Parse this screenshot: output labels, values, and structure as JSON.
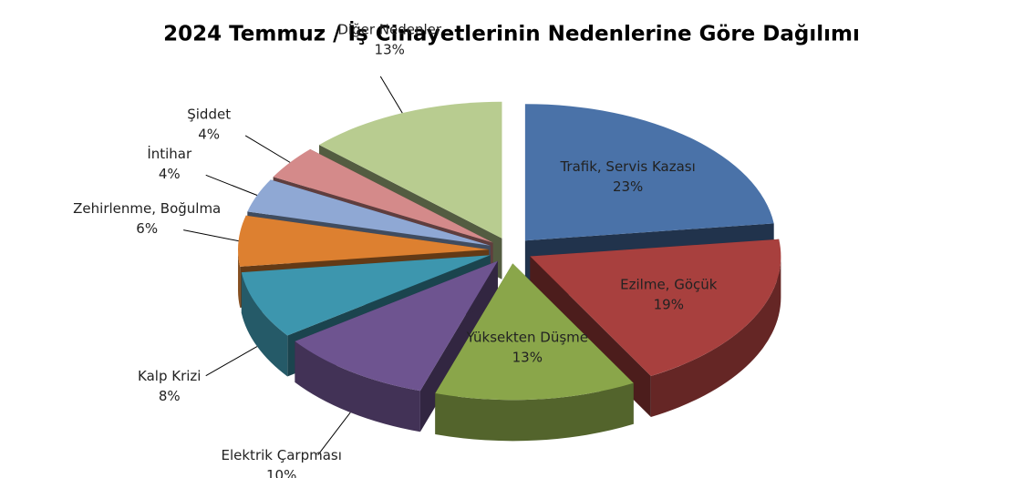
{
  "chart_data": {
    "type": "pie3d",
    "title": "2024 Temmuz / İş Cinayetlerinin Nedenlerine Göre Dağılımı",
    "categories": [
      "Trafik, Servis Kazası",
      "Ezilme, Göçük",
      "Yüksekten Düşme",
      "Elektrik Çarpması",
      "Kalp Krizi",
      "Zehirlenme, Boğulma",
      "İntihar",
      "Şiddet",
      "Diğer Nedenler"
    ],
    "values": [
      23,
      19,
      13,
      10,
      8,
      6,
      4,
      4,
      13
    ],
    "value_labels": [
      "23%",
      "19%",
      "13%",
      "10%",
      "8%",
      "6%",
      "4%",
      "4%",
      "13%"
    ],
    "colors": [
      "#4a72a8",
      "#a8403e",
      "#8aa64a",
      "#6e5490",
      "#3d96ae",
      "#dd8030",
      "#8fa8d4",
      "#d48a8a",
      "#b8cc90"
    ]
  }
}
